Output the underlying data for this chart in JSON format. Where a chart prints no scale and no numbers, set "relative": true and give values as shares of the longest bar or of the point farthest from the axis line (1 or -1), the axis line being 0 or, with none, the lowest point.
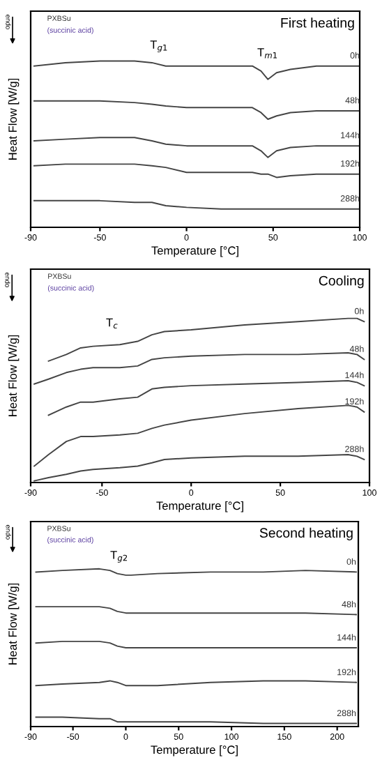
{
  "chart_data": [
    {
      "type": "line",
      "title": "First heating",
      "xlabel": "Temperature [°C]",
      "ylabel": "Heat Flow [W/g]",
      "relative": true,
      "xlim": [
        -90,
        100
      ],
      "xticks": [
        -90,
        -50,
        0,
        50,
        100
      ],
      "tick_labels": "x",
      "grid": false,
      "legend": false,
      "marker": "none",
      "line_style": "solid",
      "annotations": [
        "endo",
        "PXBSu",
        "(succinic acid)",
        "T$_{g1}$",
        "T$_{m1}$"
      ],
      "x": [
        -88,
        -70,
        -50,
        -30,
        -20,
        -12,
        0,
        20,
        38,
        43,
        47,
        52,
        60,
        75,
        100
      ],
      "series": [
        {
          "name": "0h",
          "color": "#444444",
          "values": [
            0.97,
            0.99,
            1.0,
            1.0,
            0.99,
            0.97,
            0.97,
            0.97,
            0.97,
            0.94,
            0.89,
            0.93,
            0.95,
            0.97,
            0.97
          ]
        },
        {
          "name": "48h",
          "color": "#444444",
          "values": [
            0.76,
            0.76,
            0.76,
            0.75,
            0.74,
            0.73,
            0.72,
            0.72,
            0.72,
            0.69,
            0.65,
            0.67,
            0.69,
            0.7,
            0.7
          ]
        },
        {
          "name": "144h",
          "color": "#444444",
          "values": [
            0.52,
            0.53,
            0.54,
            0.54,
            0.52,
            0.5,
            0.49,
            0.49,
            0.49,
            0.46,
            0.42,
            0.46,
            0.48,
            0.49,
            0.49
          ]
        },
        {
          "name": "192h",
          "color": "#444444",
          "values": [
            0.37,
            0.38,
            0.38,
            0.38,
            0.37,
            0.36,
            0.33,
            0.33,
            0.33,
            0.32,
            0.32,
            0.3,
            0.31,
            0.32,
            0.32
          ]
        },
        {
          "name": "288h",
          "color": "#444444",
          "values": [
            0.16,
            0.16,
            0.16,
            0.15,
            0.15,
            0.13,
            0.12,
            0.11,
            0.11,
            0.11,
            0.11,
            0.11,
            0.11,
            0.11,
            0.11
          ]
        }
      ]
    },
    {
      "type": "line",
      "title": "Cooling",
      "xlabel": "Temperature [°C]",
      "ylabel": "Heat Flow [W/g]",
      "relative": true,
      "xlim": [
        -90,
        100
      ],
      "xticks": [
        -90,
        -50,
        0,
        50,
        100
      ],
      "tick_labels": "x",
      "grid": false,
      "legend": false,
      "marker": "none",
      "line_style": "solid",
      "annotations": [
        "endo",
        "PXBSu",
        "(succinic acid)",
        "T$_{c}$"
      ],
      "x": [
        -88,
        -80,
        -70,
        -62,
        -55,
        -40,
        -30,
        -22,
        -15,
        0,
        30,
        60,
        88,
        93,
        97
      ],
      "series": [
        {
          "name": "0h",
          "color": "#444444",
          "values": [
            null,
            0.74,
            0.78,
            0.82,
            0.83,
            0.84,
            0.86,
            0.9,
            0.92,
            0.93,
            0.96,
            0.98,
            1.0,
            1.0,
            0.98
          ]
        },
        {
          "name": "48h",
          "color": "#444444",
          "values": [
            0.6,
            0.63,
            0.67,
            0.69,
            0.7,
            0.7,
            0.71,
            0.75,
            0.76,
            0.77,
            0.78,
            0.78,
            0.79,
            0.78,
            0.75
          ]
        },
        {
          "name": "144h",
          "color": "#444444",
          "values": [
            null,
            0.41,
            0.46,
            0.49,
            0.49,
            0.51,
            0.52,
            0.57,
            0.58,
            0.59,
            0.6,
            0.61,
            0.62,
            0.61,
            0.59
          ]
        },
        {
          "name": "192h",
          "color": "#444444",
          "values": [
            0.1,
            0.17,
            0.25,
            0.28,
            0.28,
            0.29,
            0.3,
            0.33,
            0.35,
            0.38,
            0.42,
            0.45,
            0.47,
            0.46,
            0.43
          ]
        },
        {
          "name": "288h",
          "color": "#444444",
          "values": [
            0.01,
            0.03,
            0.05,
            0.07,
            0.08,
            0.09,
            0.1,
            0.12,
            0.14,
            0.15,
            0.16,
            0.16,
            0.17,
            0.16,
            0.14
          ]
        }
      ]
    },
    {
      "type": "line",
      "title": "Second heating",
      "xlabel": "Temperature [°C]",
      "ylabel": "Heat Flow [W/g]",
      "relative": true,
      "xlim": [
        -90,
        220
      ],
      "xticks": [
        -90,
        -50,
        0,
        50,
        100,
        150,
        200
      ],
      "tick_labels": "x",
      "grid": false,
      "legend": false,
      "marker": "none",
      "line_style": "solid",
      "annotations": [
        "endo",
        "PXBSu",
        "(succinic acid)",
        "T$_{g2}$"
      ],
      "x": [
        -85,
        -60,
        -25,
        -15,
        -8,
        0,
        5,
        30,
        80,
        130,
        170,
        218
      ],
      "series": [
        {
          "name": "0h",
          "color": "#444444",
          "values": [
            0.98,
            0.99,
            1.0,
            0.99,
            0.97,
            0.96,
            0.96,
            0.97,
            0.98,
            0.98,
            0.99,
            0.98
          ]
        },
        {
          "name": "48h",
          "color": "#444444",
          "values": [
            0.76,
            0.76,
            0.76,
            0.75,
            0.73,
            0.72,
            0.72,
            0.72,
            0.72,
            0.72,
            0.72,
            0.71
          ]
        },
        {
          "name": "144h",
          "color": "#444444",
          "values": [
            0.53,
            0.54,
            0.54,
            0.53,
            0.51,
            0.5,
            0.5,
            0.5,
            0.5,
            0.5,
            0.5,
            0.5
          ]
        },
        {
          "name": "192h",
          "color": "#444444",
          "values": [
            0.26,
            0.27,
            0.28,
            0.29,
            0.28,
            0.26,
            0.26,
            0.26,
            0.28,
            0.29,
            0.29,
            0.28
          ]
        },
        {
          "name": "288h",
          "color": "#444444",
          "values": [
            0.06,
            0.06,
            0.05,
            0.05,
            0.03,
            0.03,
            0.03,
            0.03,
            0.03,
            0.02,
            0.02,
            0.02
          ]
        }
      ]
    }
  ]
}
